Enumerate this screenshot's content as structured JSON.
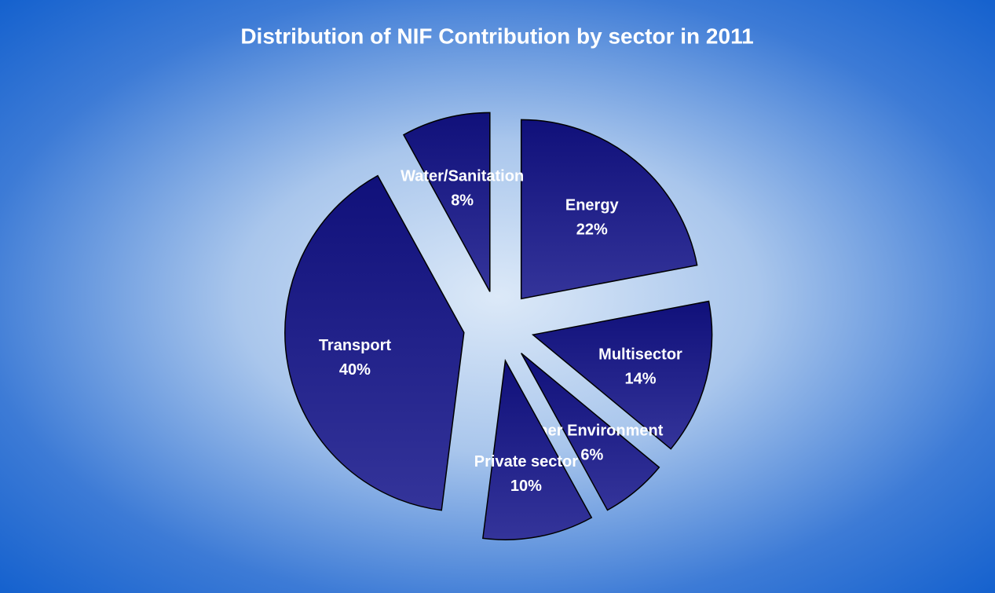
{
  "chart_data": {
    "type": "pie",
    "title": "Distribution of NIF Contribution by sector in 2011",
    "categories": [
      "Energy",
      "Multisector",
      "Other Environment",
      "Private sector",
      "Transport",
      "Water/Sanitation"
    ],
    "values": [
      22,
      14,
      6,
      10,
      40,
      8
    ],
    "value_labels": [
      "22%",
      "14%",
      "6%",
      "10%",
      "40%",
      "8%"
    ],
    "color": "#22228c"
  }
}
